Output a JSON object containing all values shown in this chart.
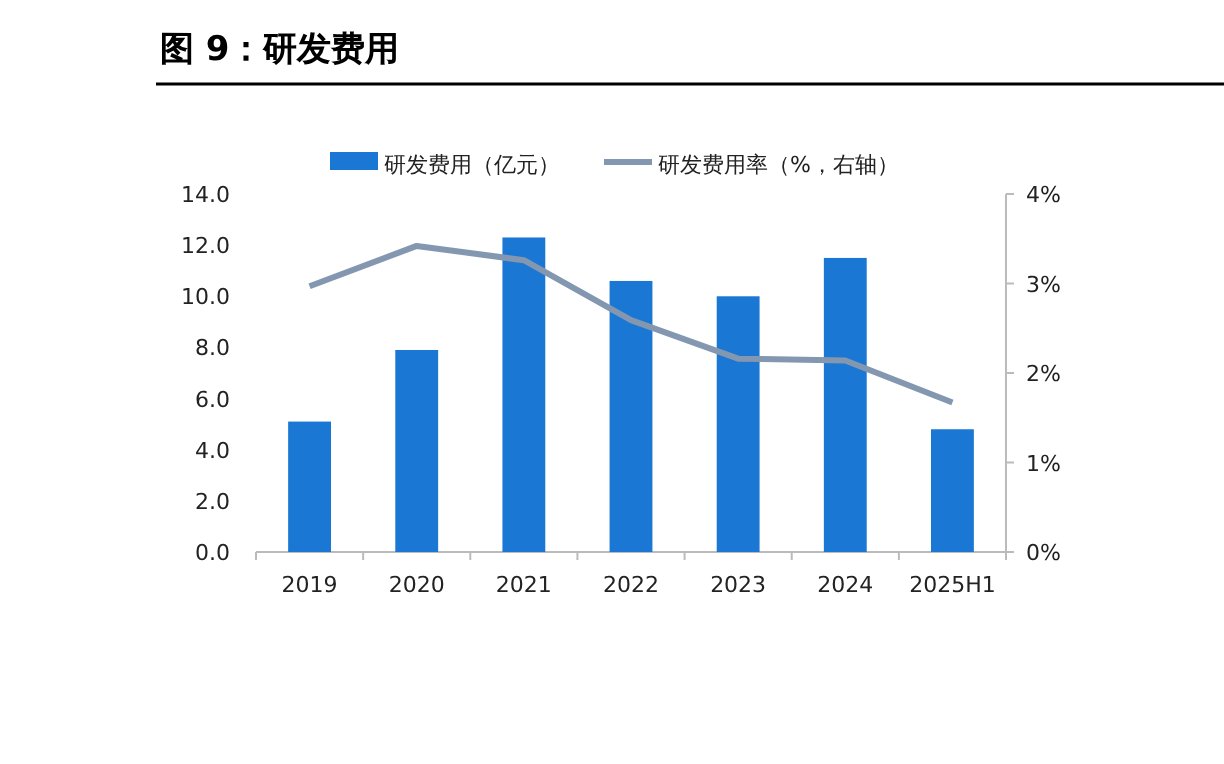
{
  "chart_data": {
    "type": "bar",
    "title": "图 9：研发费用",
    "categories": [
      "2019",
      "2020",
      "2021",
      "2022",
      "2023",
      "2024",
      "2025H1"
    ],
    "series": [
      {
        "name": "研发费用（亿元）",
        "color": "#1a77d4",
        "values": [
          5.1,
          7.9,
          12.3,
          10.6,
          10.0,
          11.5,
          4.8
        ]
      },
      {
        "name": "研发费用率（%，右轴）",
        "type": "line",
        "axis": "y2",
        "color": "#8497b0",
        "values": [
          2.97,
          3.42,
          3.26,
          2.59,
          2.16,
          2.14,
          1.67
        ]
      }
    ],
    "ylim": [
      0,
      14
    ],
    "yticks": [
      {
        "value": 0,
        "label": "0.0"
      },
      {
        "value": 2,
        "label": "2.0"
      },
      {
        "value": 4,
        "label": "4.0"
      },
      {
        "value": 6,
        "label": "6.0"
      },
      {
        "value": 8,
        "label": "8.0"
      },
      {
        "value": 10,
        "label": "10.0"
      },
      {
        "value": 12,
        "label": "12.0"
      },
      {
        "value": 14,
        "label": "14.0"
      }
    ],
    "y2lim": [
      0,
      4
    ],
    "y2ticks": [
      {
        "value": 0,
        "label": "0%"
      },
      {
        "value": 1,
        "label": "1%"
      },
      {
        "value": 2,
        "label": "2%"
      },
      {
        "value": 3,
        "label": "3%"
      },
      {
        "value": 4,
        "label": "4%"
      }
    ],
    "legend": "top",
    "grid": false,
    "marker": "none",
    "line_style": "solid"
  }
}
